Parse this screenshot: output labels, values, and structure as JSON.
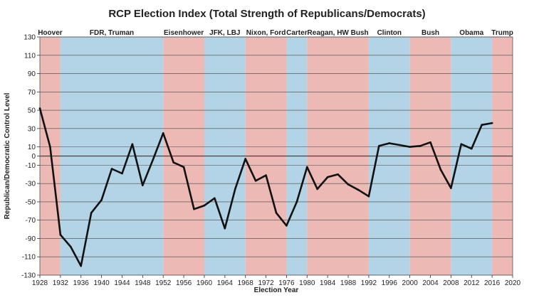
{
  "chart_data": {
    "type": "line",
    "title": "RCP Election Index (Total Strength of Republicans/Democrats)",
    "xlabel": "Election Year",
    "ylabel": "Republican/Democratic Control Level",
    "xlim": [
      1928,
      2020
    ],
    "ylim": [
      -130,
      130
    ],
    "x_ticks": [
      1928,
      1932,
      1936,
      1940,
      1944,
      1948,
      1952,
      1956,
      1960,
      1964,
      1968,
      1972,
      1976,
      1980,
      1984,
      1988,
      1992,
      1996,
      2000,
      2004,
      2008,
      2012,
      2016,
      2020
    ],
    "y_ticks": [
      130,
      110,
      90,
      70,
      50,
      30,
      10,
      0,
      -10,
      -30,
      -50,
      -70,
      -90,
      -110,
      -130
    ],
    "grid": true,
    "colors": {
      "republican": "#ecb9b5",
      "democratic": "#b3d4e7",
      "line": "#111111",
      "grid": "#444444"
    },
    "eras": [
      {
        "label": "Hoover",
        "start": 1928,
        "end": 1932,
        "party": "republican"
      },
      {
        "label": "FDR, Truman",
        "start": 1932,
        "end": 1952,
        "party": "democratic"
      },
      {
        "label": "Eisenhower",
        "start": 1952,
        "end": 1960,
        "party": "republican"
      },
      {
        "label": "JFK, LBJ",
        "start": 1960,
        "end": 1968,
        "party": "democratic"
      },
      {
        "label": "Nixon, Ford",
        "start": 1968,
        "end": 1976,
        "party": "republican"
      },
      {
        "label": "Carter",
        "start": 1976,
        "end": 1980,
        "party": "democratic"
      },
      {
        "label": "Reagan, HW Bush",
        "start": 1980,
        "end": 1992,
        "party": "republican"
      },
      {
        "label": "Clinton",
        "start": 1992,
        "end": 2000,
        "party": "democratic"
      },
      {
        "label": "Bush",
        "start": 2000,
        "end": 2008,
        "party": "republican"
      },
      {
        "label": "Obama",
        "start": 2008,
        "end": 2016,
        "party": "democratic"
      },
      {
        "label": "Trump",
        "start": 2016,
        "end": 2020,
        "party": "republican"
      }
    ],
    "series": [
      {
        "x": [
          1928,
          1930,
          1932,
          1934,
          1936,
          1938,
          1940,
          1942,
          1944,
          1946,
          1948,
          1950,
          1952,
          1954,
          1956,
          1958,
          1960,
          1962,
          1964,
          1966,
          1968,
          1970,
          1972,
          1974,
          1976,
          1978,
          1980,
          1982,
          1984,
          1986,
          1988,
          1990,
          1992,
          1994,
          1996,
          1998,
          2000,
          2002,
          2004,
          2006,
          2008,
          2010,
          2012,
          2014,
          2016
        ],
        "values": [
          52,
          10,
          -86,
          -99,
          -120,
          -62,
          -48,
          -14,
          -19,
          13,
          -32,
          -4,
          25,
          -7,
          -12,
          -58,
          -54,
          -46,
          -79,
          -36,
          -3,
          -27,
          -21,
          -62,
          -76,
          -50,
          -12,
          -36,
          -23,
          -20,
          -31,
          -37,
          -44,
          11,
          14,
          12,
          10,
          11,
          15,
          -15,
          -35,
          13,
          8,
          34,
          36
        ]
      }
    ]
  }
}
